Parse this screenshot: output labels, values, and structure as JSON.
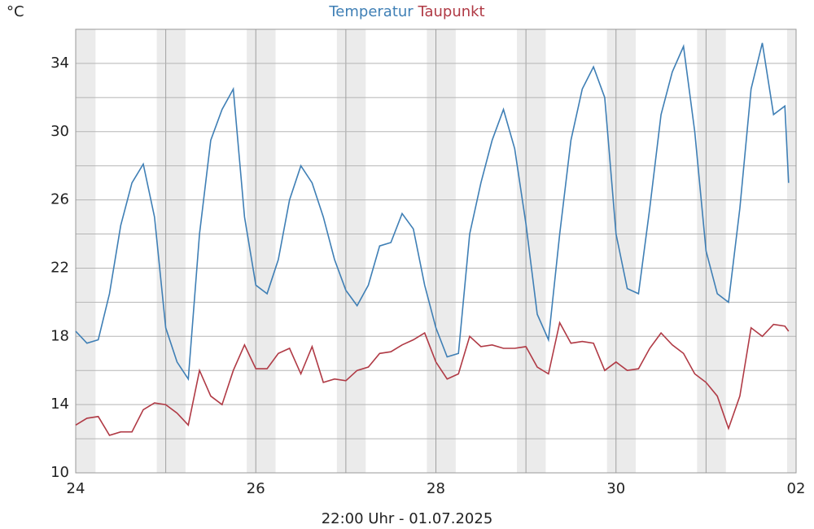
{
  "chart_data": {
    "type": "line",
    "y_unit": "°C",
    "x_label": "22:00 Uhr - 01.07.2025",
    "x": [
      0,
      0.125,
      0.25,
      0.375,
      0.5,
      0.625,
      0.75,
      0.875,
      1,
      1.125,
      1.25,
      1.375,
      1.5,
      1.625,
      1.75,
      1.875,
      2,
      2.125,
      2.25,
      2.375,
      2.5,
      2.625,
      2.75,
      2.875,
      3,
      3.125,
      3.25,
      3.375,
      3.5,
      3.625,
      3.75,
      3.875,
      4,
      4.125,
      4.25,
      4.375,
      4.5,
      4.625,
      4.75,
      4.875,
      5,
      5.125,
      5.25,
      5.375,
      5.5,
      5.625,
      5.75,
      5.875,
      6,
      6.125,
      6.25,
      6.375,
      6.5,
      6.625,
      6.75,
      6.875,
      7,
      7.125,
      7.25,
      7.375,
      7.5,
      7.625,
      7.75,
      7.875,
      7.917
    ],
    "series": [
      {
        "name": "Temperatur",
        "color": "#3f7fb5",
        "values": [
          18.3,
          17.6,
          17.8,
          20.5,
          24.5,
          27,
          28.1,
          25,
          18.5,
          16.5,
          15.5,
          24,
          29.5,
          31.3,
          32.5,
          25,
          21,
          20.5,
          22.5,
          26,
          28,
          27,
          25,
          22.5,
          20.7,
          19.8,
          21,
          23.3,
          23.5,
          25.2,
          24.3,
          21,
          18.5,
          16.8,
          17,
          24,
          27,
          29.5,
          31.3,
          29,
          24.6,
          19.3,
          17.8,
          24,
          29.5,
          32.5,
          33.8,
          32,
          24,
          20.8,
          20.5,
          25.5,
          31,
          33.5,
          35,
          30,
          23,
          20.5,
          20,
          25.5,
          32.5,
          35.2,
          31,
          31.5,
          27
        ]
      },
      {
        "name": "Taupunkt",
        "color": "#b03a45",
        "values": [
          12.8,
          13.2,
          13.3,
          12.2,
          12.4,
          12.4,
          13.7,
          14.1,
          14,
          13.5,
          12.8,
          16,
          14.5,
          14,
          16,
          17.5,
          16.1,
          16.1,
          17,
          17.3,
          15.8,
          17.4,
          15.3,
          15.5,
          15.4,
          16,
          16.2,
          17,
          17.1,
          17.5,
          17.8,
          18.2,
          16.5,
          15.5,
          15.8,
          18,
          17.4,
          17.5,
          17.3,
          17.3,
          17.4,
          16.2,
          15.8,
          18.8,
          17.6,
          17.7,
          17.6,
          16,
          16.5,
          16,
          16.1,
          17.3,
          18.2,
          17.5,
          17,
          15.8,
          15.3,
          14.5,
          12.6,
          14.5,
          18.5,
          18,
          18.7,
          18.6,
          18.3
        ]
      }
    ],
    "xlim": [
      0,
      8
    ],
    "xticks": [
      {
        "value": 0,
        "label": "24"
      },
      {
        "value": 2,
        "label": "26"
      },
      {
        "value": 4,
        "label": "28"
      },
      {
        "value": 6,
        "label": "30"
      },
      {
        "value": 8,
        "label": "02"
      }
    ],
    "xgrid_minor": [
      1,
      3,
      5,
      7
    ],
    "ylim": [
      10,
      36
    ],
    "yticks": [
      10,
      14,
      18,
      22,
      26,
      30,
      34
    ],
    "ygrid_minor": [
      12,
      16,
      20,
      24,
      28,
      32
    ],
    "grid": true
  }
}
